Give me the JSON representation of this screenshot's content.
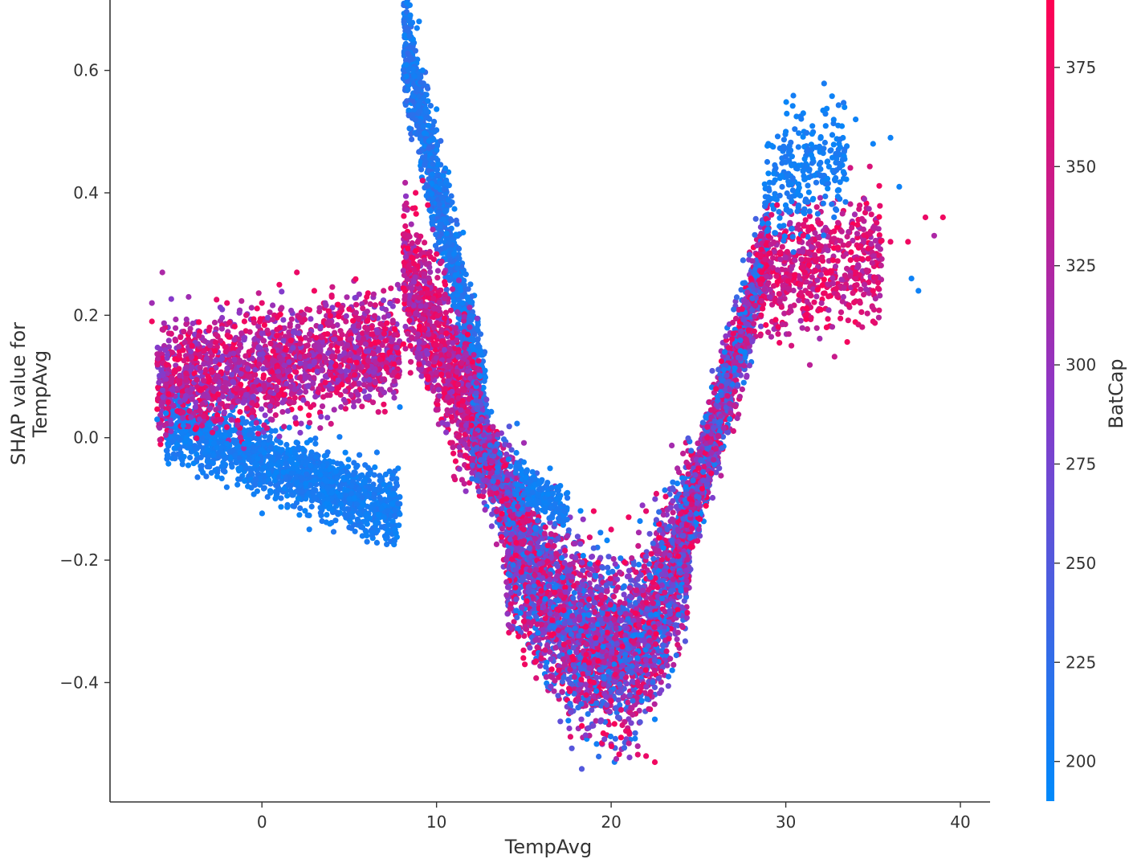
{
  "chart_data": {
    "type": "scatter",
    "title": "",
    "xlabel": "TempAvg",
    "ylabel_lines": [
      "SHAP value for",
      "TempAvg"
    ],
    "xlim": [
      -8.7,
      41.7
    ],
    "ylim": [
      -0.595,
      0.715
    ],
    "x_ticks": [
      0,
      10,
      20,
      30,
      40
    ],
    "x_tick_labels": [
      "0",
      "10",
      "20",
      "30",
      "40"
    ],
    "y_ticks": [
      -0.4,
      -0.2,
      0.0,
      0.2,
      0.4,
      0.6
    ],
    "y_tick_labels": [
      "−0.4",
      "−0.2",
      "0.0",
      "0.2",
      "0.4",
      "0.6"
    ],
    "grid": false,
    "color_feature": "BatCap",
    "colorbar": {
      "label": "BatCap",
      "range": [
        190,
        392
      ],
      "ticks": [
        200,
        225,
        250,
        275,
        300,
        325,
        350,
        375
      ],
      "tick_labels": [
        "200",
        "225",
        "250",
        "275",
        "300",
        "325",
        "350",
        "375"
      ],
      "colors": [
        "#008afb",
        "#ff0052"
      ]
    },
    "point_count_approx": 30000,
    "points": [
      [
        -6.3,
        0.22,
        310
      ],
      [
        -6.3,
        0.19,
        380
      ],
      [
        -5.9,
        0.09,
        300
      ],
      [
        -5.7,
        0.27,
        320
      ],
      [
        -5.2,
        0.17,
        360
      ],
      [
        -4.2,
        0.23,
        310
      ],
      [
        -6.0,
        0.03,
        200
      ],
      [
        -5.4,
        -0.01,
        200
      ],
      [
        -5.5,
        0.04,
        200
      ],
      [
        -5.0,
        0.11,
        375
      ],
      [
        -4.0,
        0.15,
        380
      ],
      [
        -3.0,
        0.18,
        370
      ],
      [
        -2.0,
        0.22,
        375
      ],
      [
        -1.0,
        0.19,
        380
      ],
      [
        0.0,
        0.22,
        370
      ],
      [
        1.0,
        0.25,
        380
      ],
      [
        2.0,
        0.27,
        375
      ],
      [
        3.0,
        0.24,
        380
      ],
      [
        4.0,
        0.23,
        370
      ],
      [
        5.0,
        0.21,
        375
      ],
      [
        6.0,
        0.23,
        380
      ],
      [
        7.0,
        0.17,
        375
      ],
      [
        -2.5,
        0.1,
        330
      ],
      [
        -1.0,
        0.06,
        300
      ],
      [
        1.0,
        0.1,
        330
      ],
      [
        3.0,
        0.15,
        320
      ],
      [
        4.0,
        0.08,
        300
      ],
      [
        5.5,
        0.07,
        310
      ],
      [
        6.5,
        0.09,
        320
      ],
      [
        -4.5,
        0.02,
        200
      ],
      [
        -3.0,
        0.02,
        200
      ],
      [
        -2.0,
        -0.01,
        200
      ],
      [
        -1.0,
        -0.01,
        200
      ],
      [
        0.0,
        -0.02,
        200
      ],
      [
        1.0,
        -0.04,
        200
      ],
      [
        2.0,
        -0.05,
        200
      ],
      [
        3.0,
        -0.07,
        200
      ],
      [
        4.0,
        -0.09,
        200
      ],
      [
        5.0,
        -0.1,
        200
      ],
      [
        6.0,
        -0.13,
        200
      ],
      [
        6.0,
        -0.16,
        200
      ],
      [
        7.0,
        -0.13,
        200
      ],
      [
        7.6,
        -0.15,
        200
      ],
      [
        7.8,
        -0.05,
        200
      ],
      [
        7.9,
        0.05,
        200
      ],
      [
        8.3,
        0.71,
        200
      ],
      [
        8.5,
        0.69,
        200
      ],
      [
        9.0,
        0.68,
        200
      ],
      [
        9.2,
        0.6,
        200
      ],
      [
        9.5,
        0.55,
        200
      ],
      [
        10.0,
        0.47,
        200
      ],
      [
        10.5,
        0.44,
        200
      ],
      [
        11.0,
        0.3,
        200
      ],
      [
        11.5,
        0.22,
        200
      ],
      [
        12.0,
        0.15,
        200
      ],
      [
        12.5,
        0.1,
        200
      ],
      [
        8.3,
        0.55,
        230
      ],
      [
        8.8,
        0.4,
        380
      ],
      [
        9.2,
        0.42,
        370
      ],
      [
        9.5,
        0.38,
        380
      ],
      [
        10.0,
        0.3,
        375
      ],
      [
        10.5,
        0.25,
        380
      ],
      [
        8.2,
        0.24,
        380
      ],
      [
        8.5,
        0.15,
        380
      ],
      [
        9.0,
        0.12,
        375
      ],
      [
        9.5,
        0.1,
        380
      ],
      [
        10.5,
        0.08,
        370
      ],
      [
        11.5,
        0.06,
        380
      ],
      [
        12.0,
        0.02,
        380
      ],
      [
        13.0,
        -0.05,
        375
      ],
      [
        14.0,
        -0.1,
        380
      ],
      [
        15.0,
        -0.15,
        370
      ],
      [
        15.0,
        -0.04,
        200
      ],
      [
        16.5,
        -0.05,
        200
      ],
      [
        17.5,
        -0.09,
        200
      ],
      [
        14.0,
        -0.2,
        310
      ],
      [
        15.0,
        -0.3,
        375
      ],
      [
        16.0,
        -0.25,
        380
      ],
      [
        17.0,
        -0.38,
        375
      ],
      [
        18.0,
        -0.35,
        300
      ],
      [
        19.0,
        -0.4,
        380
      ],
      [
        20.0,
        -0.43,
        375
      ],
      [
        21.0,
        -0.48,
        380
      ],
      [
        22.0,
        -0.52,
        375
      ],
      [
        22.5,
        -0.53,
        380
      ],
      [
        22.5,
        -0.46,
        200
      ],
      [
        21.5,
        -0.36,
        200
      ],
      [
        19.0,
        -0.12,
        380
      ],
      [
        20.0,
        -0.15,
        375
      ],
      [
        21.0,
        -0.13,
        380
      ],
      [
        22.0,
        -0.12,
        370
      ],
      [
        23.0,
        -0.18,
        200
      ],
      [
        23.5,
        -0.38,
        200
      ],
      [
        24.0,
        -0.25,
        200
      ],
      [
        24.5,
        -0.1,
        375
      ],
      [
        25.0,
        -0.05,
        380
      ],
      [
        25.5,
        0.0,
        370
      ],
      [
        26.0,
        0.08,
        375
      ],
      [
        26.5,
        0.14,
        200
      ],
      [
        27.0,
        0.17,
        375
      ],
      [
        27.5,
        0.21,
        370
      ],
      [
        28.0,
        0.26,
        380
      ],
      [
        29.0,
        0.35,
        200
      ],
      [
        29.5,
        0.38,
        375
      ],
      [
        29.0,
        0.48,
        200
      ],
      [
        30.0,
        0.5,
        200
      ],
      [
        31.0,
        0.53,
        200
      ],
      [
        32.0,
        0.49,
        200
      ],
      [
        33.0,
        0.51,
        200
      ],
      [
        34.0,
        0.52,
        200
      ],
      [
        35.0,
        0.48,
        200
      ],
      [
        36.0,
        0.49,
        200
      ],
      [
        36.5,
        0.41,
        200
      ],
      [
        37.2,
        0.26,
        200
      ],
      [
        37.6,
        0.24,
        200
      ],
      [
        31.0,
        0.33,
        375
      ],
      [
        32.0,
        0.35,
        370
      ],
      [
        33.0,
        0.31,
        380
      ],
      [
        34.0,
        0.27,
        375
      ],
      [
        35.0,
        0.24,
        380
      ],
      [
        35.0,
        0.19,
        370
      ],
      [
        36.0,
        0.32,
        375
      ],
      [
        37.0,
        0.32,
        380
      ],
      [
        38.0,
        0.36,
        375
      ],
      [
        39.0,
        0.36,
        380
      ],
      [
        38.5,
        0.33,
        320
      ],
      [
        34.5,
        0.39,
        310
      ]
    ]
  }
}
